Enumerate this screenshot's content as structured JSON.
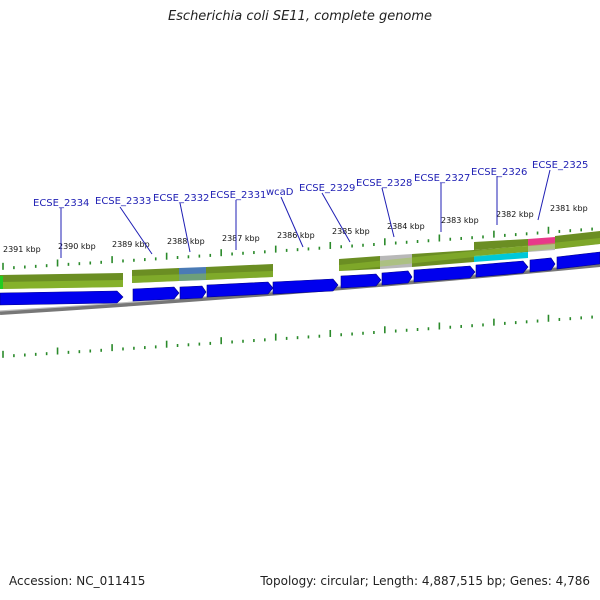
{
  "title": "Escherichia coli SE11, complete genome",
  "footer": {
    "accession": "Accession: NC_011415",
    "topology": "Topology: circular; Length: 4,887,515 bp; Genes: 4,786"
  },
  "colors": {
    "gene_label": "#1f1fb4",
    "tick": "#2a8a2a",
    "cog_green": "#6b8e23",
    "cog_light_green": "#9acd32",
    "cog_blue": "#4a7ab5",
    "cog_grey": "#b8b8b8",
    "cog_cyan": "#00c8d8",
    "cog_pink": "#e8388a",
    "cds_blue": "#0000ee",
    "backbone": "#888888"
  },
  "kbp_ticks": [
    "2391 kbp",
    "2390 kbp",
    "2389 kbp",
    "2388 kbp",
    "2387 kbp",
    "2386 kbp",
    "2385 kbp",
    "2384 kbp",
    "2383 kbp",
    "2382 kbp",
    "2381 kbp"
  ],
  "gene_labels": [
    "ECSE_2334",
    "ECSE_2333",
    "ECSE_2332",
    "ECSE_2331",
    "wcaD",
    "ECSE_2329",
    "ECSE_2328",
    "ECSE_2327",
    "ECSE_2326",
    "ECSE_2325"
  ]
}
